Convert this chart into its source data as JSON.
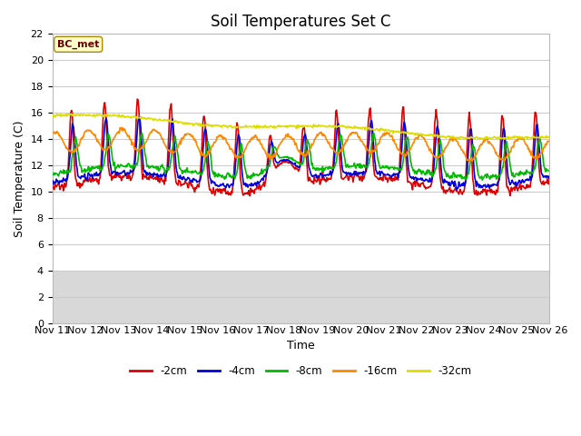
{
  "title": "Soil Temperatures Set C",
  "xlabel": "Time",
  "ylabel": "Soil Temperature (C)",
  "annotation": "BC_met",
  "ylim": [
    0,
    22
  ],
  "yticks": [
    0,
    2,
    4,
    6,
    8,
    10,
    12,
    14,
    16,
    18,
    20,
    22
  ],
  "xtick_labels": [
    "Nov 11",
    "Nov 12",
    "Nov 13",
    "Nov 14",
    "Nov 15",
    "Nov 16",
    "Nov 17",
    "Nov 18",
    "Nov 19",
    "Nov 20",
    "Nov 21",
    "Nov 22",
    "Nov 23",
    "Nov 24",
    "Nov 25",
    "Nov 26"
  ],
  "series": {
    "-2cm": {
      "color": "#dd0000",
      "lw": 1.2
    },
    "-4cm": {
      "color": "#0000dd",
      "lw": 1.2
    },
    "-8cm": {
      "color": "#00bb00",
      "lw": 1.2
    },
    "-16cm": {
      "color": "#ff8800",
      "lw": 1.2
    },
    "-32cm": {
      "color": "#dddd00",
      "lw": 1.2
    }
  },
  "legend_order": [
    "-2cm",
    "-4cm",
    "-8cm",
    "-16cm",
    "-32cm"
  ],
  "bg_color": "#ffffff",
  "lower_band_color": "#e0e0e0",
  "grid_color": "#d0d0d0",
  "title_fontsize": 12,
  "axis_fontsize": 9,
  "tick_fontsize": 8
}
